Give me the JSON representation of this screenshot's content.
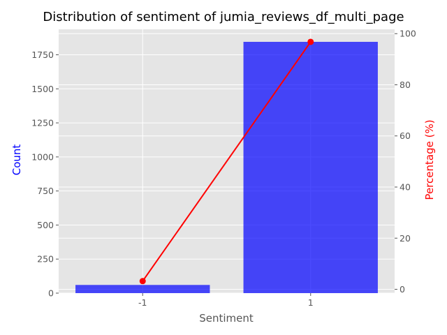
{
  "chart_data": {
    "type": "bar",
    "title": "Distribution of sentiment of jumia_reviews_df_multi_page",
    "xlabel": "Sentiment",
    "ylabel": "Count",
    "y2label": "Percentage (%)",
    "categories": [
      "-1",
      "1"
    ],
    "series": [
      {
        "axis": "left",
        "kind": "bar",
        "color": "#0000ff",
        "values": [
          60,
          1845
        ]
      },
      {
        "axis": "right",
        "kind": "line",
        "color": "#ff0000",
        "values": [
          3.2,
          96.8
        ]
      }
    ],
    "ylim": [
      0,
      1937
    ],
    "y2lim": [
      -1.5,
      101.7
    ],
    "yticks": [
      0,
      250,
      500,
      750,
      1000,
      1250,
      1500,
      1750
    ],
    "y2ticks": [
      0,
      20,
      40,
      60,
      80,
      100
    ],
    "grid": true,
    "background": "#e5e5e5"
  }
}
